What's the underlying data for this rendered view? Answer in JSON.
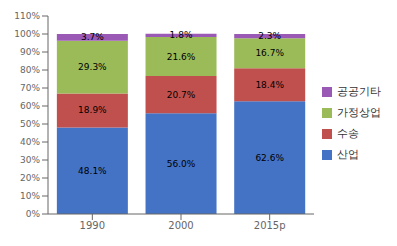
{
  "chart_data": {
    "type": "bar",
    "stacked": true,
    "data_labels": true,
    "grid": false,
    "legend": "right",
    "categories": [
      "1990",
      "2000",
      "2015p"
    ],
    "series": [
      {
        "name": "산업",
        "color": "#4472C4",
        "values": [
          48.1,
          56.0,
          62.6
        ],
        "value_labels": [
          "48.1%",
          "56.0%",
          "62.6%"
        ]
      },
      {
        "name": "수송",
        "color": "#C0504D",
        "values": [
          18.9,
          20.7,
          18.4
        ],
        "value_labels": [
          "18.9%",
          "20.7%",
          "18.4%"
        ]
      },
      {
        "name": "가정상업",
        "color": "#9BBB59",
        "values": [
          29.3,
          21.6,
          16.7
        ],
        "value_labels": [
          "29.3%",
          "21.6%",
          "16.7%"
        ]
      },
      {
        "name": "공공기타",
        "color": "#9B59B6",
        "values": [
          3.7,
          1.8,
          2.3
        ],
        "value_labels": [
          "3.7%",
          "1.8%",
          "2.3%"
        ]
      }
    ],
    "ylim": [
      0,
      110
    ],
    "yticks": [
      {
        "value": 0,
        "label": "0%"
      },
      {
        "value": 10,
        "label": "10%"
      },
      {
        "value": 20,
        "label": "20%"
      },
      {
        "value": 30,
        "label": "30%"
      },
      {
        "value": 40,
        "label": "40%"
      },
      {
        "value": 50,
        "label": "50%"
      },
      {
        "value": 60,
        "label": "60%"
      },
      {
        "value": 70,
        "label": "70%"
      },
      {
        "value": 80,
        "label": "80%"
      },
      {
        "value": 90,
        "label": "90%"
      },
      {
        "value": 100,
        "label": "100%"
      },
      {
        "value": 110,
        "label": "110%"
      }
    ]
  }
}
